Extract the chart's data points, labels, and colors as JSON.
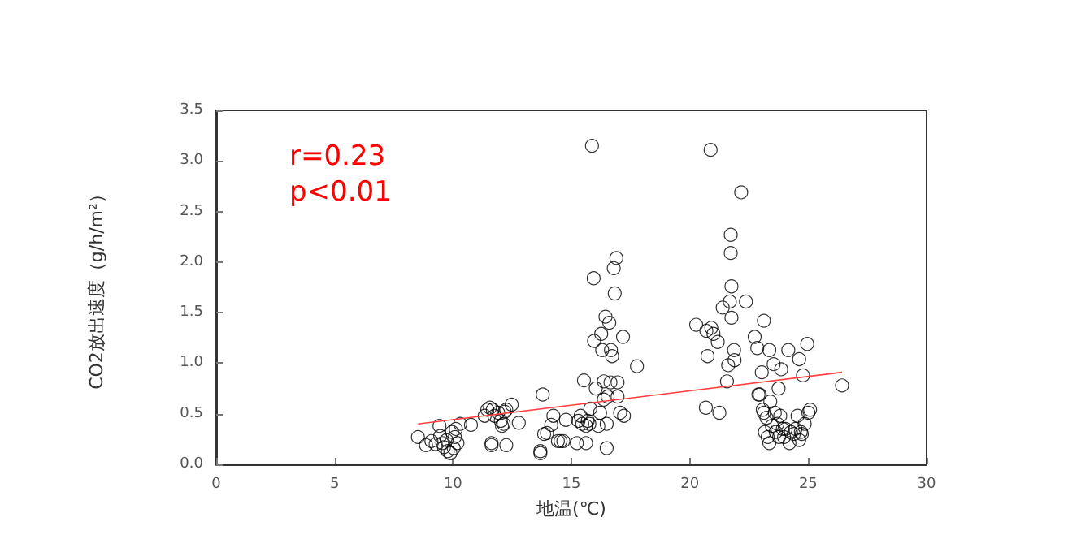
{
  "chart_data": {
    "type": "scatter",
    "xlabel": "地温(℃)",
    "ylabel": "CO2放出速度（g/h/m²）",
    "annotations": [
      "r=0.23",
      "p<0.01"
    ],
    "xlim": [
      0,
      30
    ],
    "xticks": [
      0,
      5,
      10,
      15,
      20,
      25,
      30
    ],
    "ylim": [
      0,
      3.5
    ],
    "yticks": [
      {
        "value": 0,
        "label": "0.0"
      },
      0.5,
      {
        "value": 1,
        "label": "1.0"
      },
      1.5,
      {
        "value": 2,
        "label": "2.0"
      },
      2.5,
      {
        "value": 3,
        "label": "3.0"
      },
      3.5
    ],
    "grid": false,
    "marker": "circle",
    "series": [
      {
        "color": "#000000",
        "x": [
          8.52,
          8.86,
          9.09,
          9.27,
          9.43,
          9.46,
          9.55,
          9.62,
          9.73,
          9.78,
          9.89,
          9.96,
          10.03,
          10.08,
          10.12,
          10.19,
          10.31,
          10.76,
          11.34,
          11.45,
          11.56,
          11.68,
          11.75,
          11.63,
          11.63,
          11.91,
          12.02,
          12.07,
          12.14,
          12.18,
          12.25,
          12.25,
          12.48,
          12.78,
          13.69,
          13.69,
          13.79,
          13.85,
          13.97,
          14.15,
          14.24,
          14.43,
          14.54,
          14.66,
          14.77,
          15.23,
          15.3,
          15.39,
          15.46,
          15.53,
          15.62,
          15.62,
          15.69,
          15.76,
          15.8,
          15.87,
          15.94,
          15.96,
          16.03,
          16.14,
          16.21,
          16.26,
          16.3,
          16.37,
          16.37,
          16.44,
          16.49,
          16.49,
          16.53,
          16.6,
          16.65,
          16.67,
          16.72,
          16.79,
          16.83,
          16.9,
          16.95,
          16.95,
          17.06,
          17.18,
          17.22,
          17.77,
          20.27,
          20.68,
          20.75,
          20.7,
          20.88,
          20.91,
          21.0,
          21.18,
          21.25,
          21.39,
          21.57,
          21.62,
          21.69,
          21.73,
          21.73,
          21.76,
          21.76,
          21.87,
          21.89,
          22.17,
          22.37,
          22.74,
          22.85,
          22.9,
          22.95,
          23.04,
          23.13,
          23.08,
          23.13,
          23.17,
          23.24,
          23.29,
          23.36,
          23.36,
          23.4,
          23.47,
          23.54,
          23.59,
          23.63,
          23.7,
          23.75,
          23.77,
          23.82,
          23.86,
          23.93,
          23.98,
          24.05,
          24.16,
          24.21,
          24.27,
          24.39,
          24.46,
          24.55,
          24.62,
          24.62,
          24.69,
          24.73,
          24.78,
          24.85,
          24.96,
          25.01,
          25.08,
          26.43
        ],
        "values": [
          0.27,
          0.19,
          0.23,
          0.2,
          0.38,
          0.28,
          0.21,
          0.17,
          0.24,
          0.13,
          0.11,
          0.32,
          0.16,
          0.27,
          0.35,
          0.21,
          0.4,
          0.39,
          0.48,
          0.54,
          0.56,
          0.54,
          0.48,
          0.21,
          0.19,
          0.51,
          0.43,
          0.38,
          0.4,
          0.52,
          0.54,
          0.19,
          0.59,
          0.41,
          0.11,
          0.13,
          0.69,
          0.3,
          0.31,
          0.39,
          0.48,
          0.23,
          0.23,
          0.23,
          0.44,
          0.21,
          0.43,
          0.48,
          0.4,
          0.83,
          0.38,
          0.21,
          0.43,
          0.4,
          0.55,
          3.15,
          1.84,
          1.22,
          0.75,
          0.38,
          0.51,
          1.29,
          1.13,
          0.82,
          0.64,
          1.46,
          0.16,
          0.4,
          0.67,
          1.4,
          0.81,
          1.13,
          1.07,
          1.94,
          1.69,
          2.04,
          0.81,
          0.67,
          0.51,
          1.26,
          0.48,
          0.97,
          1.38,
          0.56,
          1.07,
          1.32,
          3.11,
          1.35,
          1.29,
          1.21,
          0.51,
          1.55,
          0.82,
          0.98,
          1.61,
          2.27,
          2.09,
          1.76,
          1.45,
          1.13,
          1.03,
          2.69,
          1.61,
          1.26,
          1.15,
          0.69,
          0.69,
          0.91,
          1.42,
          0.54,
          0.51,
          0.32,
          0.46,
          0.27,
          1.13,
          0.21,
          0.62,
          0.38,
          0.99,
          0.51,
          0.32,
          0.4,
          0.75,
          0.27,
          0.48,
          0.94,
          0.35,
          0.27,
          0.35,
          1.13,
          0.21,
          0.32,
          0.3,
          0.35,
          0.48,
          1.04,
          0.24,
          0.32,
          0.3,
          0.88,
          0.4,
          1.19,
          0.51,
          0.54,
          0.78
        ]
      },
      {
        "type": "line",
        "color": "#ff4040",
        "x": [
          8.52,
          26.43
        ],
        "values": [
          0.4,
          0.91
        ],
        "marker": "none"
      }
    ]
  }
}
